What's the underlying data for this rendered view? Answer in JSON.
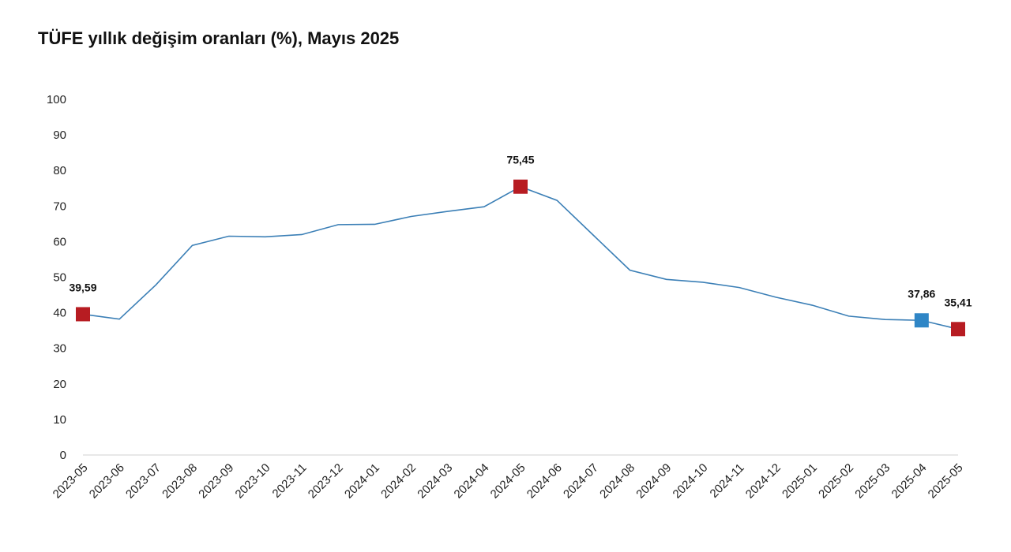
{
  "chart_data": {
    "type": "line",
    "title": "TÜFE yıllık değişim oranları (%), Mayıs 2025",
    "xlabel": "",
    "ylabel": "",
    "ylim": [
      0,
      100
    ],
    "yticks": [
      "0",
      "10",
      "20",
      "30",
      "40",
      "50",
      "60",
      "70",
      "80",
      "90",
      "100"
    ],
    "grid": false,
    "categories": [
      "2023-05",
      "2023-06",
      "2023-07",
      "2023-08",
      "2023-09",
      "2023-10",
      "2023-11",
      "2023-12",
      "2024-01",
      "2024-02",
      "2024-03",
      "2024-04",
      "2024-05",
      "2024-06",
      "2024-07",
      "2024-08",
      "2024-09",
      "2024-10",
      "2024-11",
      "2024-12",
      "2025-01",
      "2025-02",
      "2025-03",
      "2025-04",
      "2025-05"
    ],
    "values": [
      39.59,
      38.21,
      47.83,
      58.94,
      61.53,
      61.36,
      61.98,
      64.77,
      64.86,
      67.07,
      68.5,
      69.8,
      75.45,
      71.6,
      61.78,
      51.97,
      49.38,
      48.58,
      47.09,
      44.38,
      42.12,
      39.05,
      38.1,
      37.86,
      35.41
    ],
    "line_color": "#3b7fb6",
    "markers": [
      {
        "index": 0,
        "label": "39,59",
        "color": "#b71c22"
      },
      {
        "index": 12,
        "label": "75,45",
        "color": "#b71c22"
      },
      {
        "index": 23,
        "label": "37,86",
        "color": "#2f86c6"
      },
      {
        "index": 24,
        "label": "35,41",
        "color": "#b71c22"
      }
    ]
  }
}
